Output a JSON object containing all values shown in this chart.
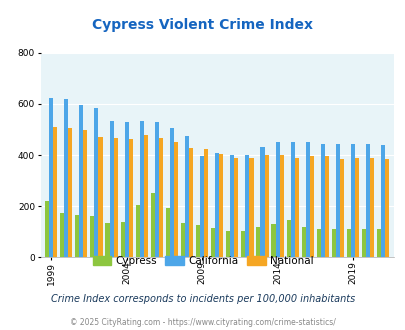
{
  "title": "Cypress Violent Crime Index",
  "title_color": "#1565c0",
  "subtitle": "Crime Index corresponds to incidents per 100,000 inhabitants",
  "footer": "© 2025 CityRating.com - https://www.cityrating.com/crime-statistics/",
  "years": [
    1999,
    2000,
    2001,
    2002,
    2003,
    2004,
    2005,
    2006,
    2007,
    2008,
    2009,
    2010,
    2011,
    2012,
    2013,
    2014,
    2015,
    2016,
    2017,
    2018,
    2019,
    2020,
    2021
  ],
  "cypress": [
    220,
    175,
    165,
    160,
    135,
    140,
    205,
    250,
    195,
    135,
    125,
    115,
    105,
    105,
    120,
    130,
    145,
    120,
    110,
    110,
    110,
    110,
    110
  ],
  "california": [
    622,
    618,
    595,
    583,
    535,
    530,
    533,
    530,
    505,
    473,
    395,
    410,
    400,
    400,
    430,
    450,
    450,
    450,
    443,
    443,
    445,
    445,
    440
  ],
  "national": [
    510,
    505,
    500,
    470,
    465,
    463,
    480,
    468,
    450,
    428,
    425,
    405,
    390,
    388,
    400,
    400,
    388,
    395,
    395,
    385,
    390,
    390,
    385
  ],
  "cypress_color": "#8dc63f",
  "california_color": "#4da6e8",
  "national_color": "#f5a623",
  "plot_bg": "#e8f4f8",
  "ylim": [
    0,
    800
  ],
  "yticks": [
    0,
    200,
    400,
    600,
    800
  ],
  "bar_width": 0.27,
  "xtick_years": [
    1999,
    2004,
    2009,
    2014,
    2019
  ],
  "legend_labels": [
    "Cypress",
    "California",
    "National"
  ],
  "subtitle_color": "#1a3a5c",
  "footer_color": "#888888"
}
